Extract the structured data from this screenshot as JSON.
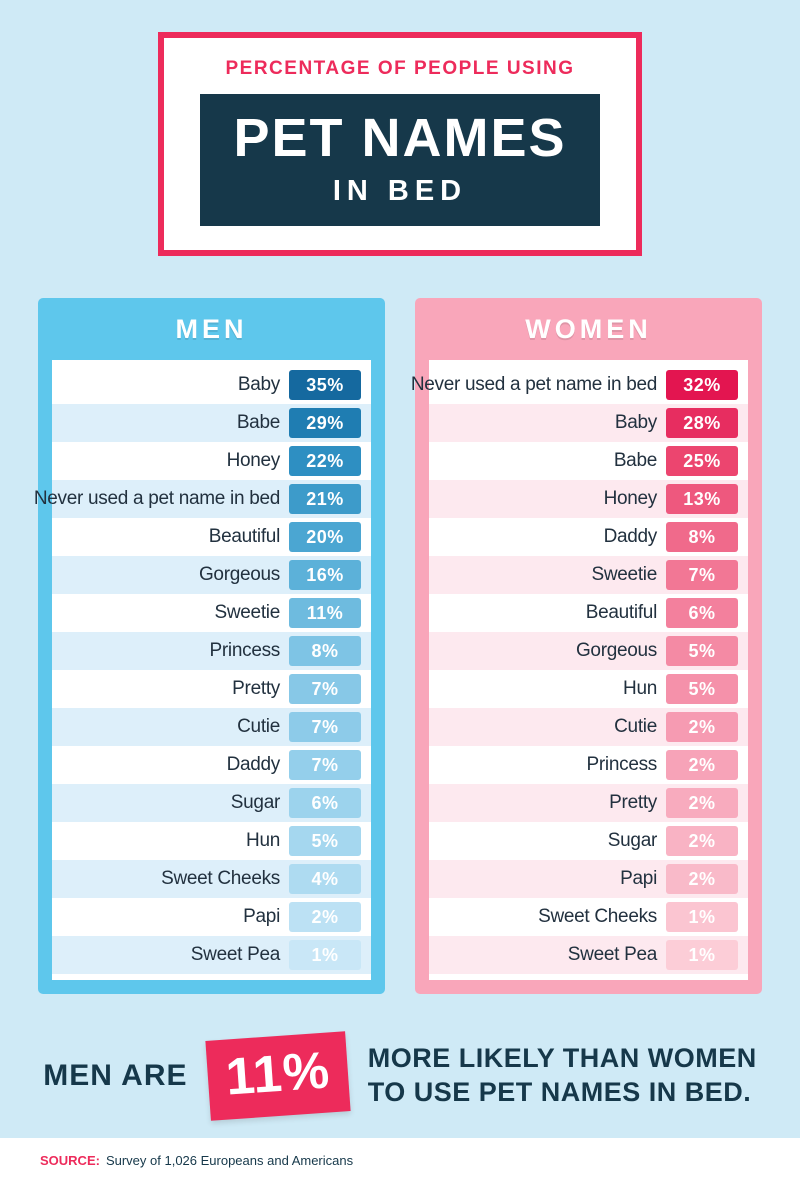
{
  "colors": {
    "background": "#cfeaf6",
    "accent_pink": "#ed2b5b",
    "navy": "#16384a",
    "men_primary": "#5ec7ec",
    "women_primary": "#f9a6ba",
    "men_row_stripe": "#ddeffa",
    "women_row_stripe": "#fde9ef"
  },
  "header": {
    "kicker": "PERCENTAGE OF PEOPLE USING",
    "title_line1": "PET NAMES",
    "title_line2": "IN BED"
  },
  "panels": {
    "men": {
      "title": "MEN",
      "rows": [
        {
          "label": "Baby",
          "value": "35%",
          "chip": "#15699f"
        },
        {
          "label": "Babe",
          "value": "29%",
          "chip": "#1f7db2"
        },
        {
          "label": "Honey",
          "value": "22%",
          "chip": "#2e8fc2"
        },
        {
          "label": "Never used a pet name in bed",
          "value": "21%",
          "chip": "#3d9bca"
        },
        {
          "label": "Beautiful",
          "value": "20%",
          "chip": "#4ba6d2"
        },
        {
          "label": "Gorgeous",
          "value": "16%",
          "chip": "#5cb1d9"
        },
        {
          "label": "Sweetie",
          "value": "11%",
          "chip": "#6ebbdf"
        },
        {
          "label": "Princess",
          "value": "8%",
          "chip": "#7ec4e5"
        },
        {
          "label": "Pretty",
          "value": "7%",
          "chip": "#87c8e7"
        },
        {
          "label": "Cutie",
          "value": "7%",
          "chip": "#8dcbe9"
        },
        {
          "label": "Daddy",
          "value": "7%",
          "chip": "#94cfeb"
        },
        {
          "label": "Sugar",
          "value": "6%",
          "chip": "#9cd3ed"
        },
        {
          "label": "Hun",
          "value": "5%",
          "chip": "#a5d7ef"
        },
        {
          "label": "Sweet Cheeks",
          "value": "4%",
          "chip": "#aedbf1"
        },
        {
          "label": "Papi",
          "value": "2%",
          "chip": "#bce1f4"
        },
        {
          "label": "Sweet Pea",
          "value": "1%",
          "chip": "#c9e7f7"
        }
      ]
    },
    "women": {
      "title": "WOMEN",
      "rows": [
        {
          "label": "Never used a pet name in bed",
          "value": "32%",
          "chip": "#e31550"
        },
        {
          "label": "Baby",
          "value": "28%",
          "chip": "#e72d60"
        },
        {
          "label": "Babe",
          "value": "25%",
          "chip": "#ec456f"
        },
        {
          "label": "Honey",
          "value": "13%",
          "chip": "#ee587e"
        },
        {
          "label": "Daddy",
          "value": "8%",
          "chip": "#f06a8b"
        },
        {
          "label": "Sweetie",
          "value": "7%",
          "chip": "#f27795"
        },
        {
          "label": "Beautiful",
          "value": "6%",
          "chip": "#f3809d"
        },
        {
          "label": "Gorgeous",
          "value": "5%",
          "chip": "#f48aa4"
        },
        {
          "label": "Hun",
          "value": "5%",
          "chip": "#f591aa"
        },
        {
          "label": "Cutie",
          "value": "2%",
          "chip": "#f69bb2"
        },
        {
          "label": "Princess",
          "value": "2%",
          "chip": "#f7a3b8"
        },
        {
          "label": "Pretty",
          "value": "2%",
          "chip": "#f8abbe"
        },
        {
          "label": "Sugar",
          "value": "2%",
          "chip": "#f9b3c4"
        },
        {
          "label": "Papi",
          "value": "2%",
          "chip": "#f9bac9"
        },
        {
          "label": "Sweet Cheeks",
          "value": "1%",
          "chip": "#fbc5d1"
        },
        {
          "label": "Sweet Pea",
          "value": "1%",
          "chip": "#fccdd7"
        }
      ]
    }
  },
  "callout": {
    "prefix": "MEN ARE",
    "highlight": "11%",
    "line1": "MORE LIKELY THAN WOMEN",
    "line2": "TO USE PET NAMES IN BED."
  },
  "footer": {
    "source_label": "SOURCE:",
    "source_text": "Survey of 1,026 Europeans and Americans"
  },
  "chart_data": {
    "type": "bar",
    "title": "Percentage of People Using Pet Names in Bed",
    "legend_position": "panel-headers",
    "series": [
      {
        "name": "Men",
        "categories": [
          "Baby",
          "Babe",
          "Honey",
          "Never used a pet name in bed",
          "Beautiful",
          "Gorgeous",
          "Sweetie",
          "Princess",
          "Pretty",
          "Cutie",
          "Daddy",
          "Sugar",
          "Hun",
          "Sweet Cheeks",
          "Papi",
          "Sweet Pea"
        ],
        "values": [
          35,
          29,
          22,
          21,
          20,
          16,
          11,
          8,
          7,
          7,
          7,
          6,
          5,
          4,
          2,
          1
        ],
        "unit": "%"
      },
      {
        "name": "Women",
        "categories": [
          "Never used a pet name in bed",
          "Baby",
          "Babe",
          "Honey",
          "Daddy",
          "Sweetie",
          "Beautiful",
          "Gorgeous",
          "Hun",
          "Cutie",
          "Princess",
          "Pretty",
          "Sugar",
          "Papi",
          "Sweet Cheeks",
          "Sweet Pea"
        ],
        "values": [
          32,
          28,
          25,
          13,
          8,
          7,
          6,
          5,
          5,
          2,
          2,
          2,
          2,
          2,
          1,
          1
        ],
        "unit": "%"
      }
    ],
    "annotation": "Men are 11% more likely than women to use pet names in bed.",
    "source": "Survey of 1,026 Europeans and Americans"
  }
}
